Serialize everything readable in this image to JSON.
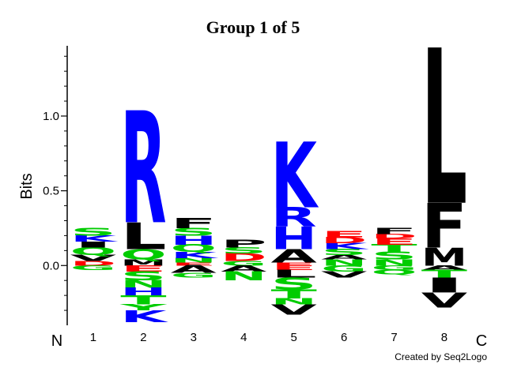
{
  "chart_data": {
    "type": "logo",
    "title": "Group 1 of 5",
    "y_label": "Bits",
    "n_label": "N",
    "c_label": "C",
    "footer": "Created by Seq2Logo",
    "ylim": [
      -0.4,
      1.47
    ],
    "yticks": [
      {
        "value": 0,
        "label": "0.0"
      },
      0.5,
      {
        "value": 1,
        "label": "1.0"
      }
    ],
    "minor_yticks": [
      -0.3,
      -0.2,
      -0.1,
      0.1,
      0.2,
      0.3,
      0.4,
      0.6,
      0.7,
      0.8,
      0.9,
      1.1,
      1.2,
      1.3,
      1.4
    ],
    "xlim": [
      0.48,
      9.23
    ],
    "x": [
      1,
      2,
      3,
      4,
      5,
      6,
      7,
      8
    ],
    "colors": {
      "K": "#0000ff",
      "R": "#0000ff",
      "H": "#0000ff",
      "D": "#ff0000",
      "E": "#ff0000",
      "S": "#00cc00",
      "T": "#00cc00",
      "N": "#00cc00",
      "Q": "#00cc00",
      "G": "#00cc00",
      "Y": "#00cc00",
      "A": "#000000",
      "V": "#000000",
      "L": "#000000",
      "I": "#000000",
      "M": "#000000",
      "F": "#000000",
      "P": "#000000",
      "W": "#000000"
    },
    "positions": [
      {
        "letters": [
          {
            "letter": "D",
            "height": 0.03
          },
          {
            "letter": "V",
            "height": 0.04
          },
          {
            "letter": "Q",
            "height": 0.05
          },
          {
            "letter": "I",
            "height": 0.04
          },
          {
            "letter": "K",
            "height": 0.04
          },
          {
            "letter": "S",
            "height": 0.05
          },
          {
            "letter": "G",
            "height": -0.03
          }
        ]
      },
      {
        "letters": [
          {
            "letter": "M",
            "height": 0.04
          },
          {
            "letter": "Q",
            "height": 0.07
          },
          {
            "letter": "L",
            "height": 0.18
          },
          {
            "letter": "R",
            "height": 0.75
          },
          {
            "letter": "E",
            "height": -0.04
          },
          {
            "letter": "S",
            "height": -0.06
          },
          {
            "letter": "N",
            "height": -0.05
          },
          {
            "letter": "H",
            "height": -0.05
          },
          {
            "letter": "T",
            "height": -0.06
          },
          {
            "letter": "Y",
            "height": -0.04
          },
          {
            "letter": "K",
            "height": -0.08
          }
        ]
      },
      {
        "letters": [
          {
            "letter": "E",
            "height": 0.02
          },
          {
            "letter": "N",
            "height": 0.03
          },
          {
            "letter": "K",
            "height": 0.04
          },
          {
            "letter": "Q",
            "height": 0.05
          },
          {
            "letter": "H",
            "height": 0.06
          },
          {
            "letter": "S",
            "height": 0.05
          },
          {
            "letter": "F",
            "height": 0.07
          },
          {
            "letter": "A",
            "height": -0.05
          },
          {
            "letter": "G",
            "height": -0.03
          }
        ]
      },
      {
        "letters": [
          {
            "letter": "G",
            "height": 0.03
          },
          {
            "letter": "D",
            "height": 0.05
          },
          {
            "letter": "S",
            "height": 0.04
          },
          {
            "letter": "P",
            "height": 0.05
          },
          {
            "letter": "A",
            "height": -0.04
          },
          {
            "letter": "N",
            "height": -0.06
          }
        ]
      },
      {
        "letters": [
          {
            "letter": "E",
            "height": 0.02
          },
          {
            "letter": "A",
            "height": 0.09
          },
          {
            "letter": "H",
            "height": 0.15
          },
          {
            "letter": "R",
            "height": 0.13
          },
          {
            "letter": "K",
            "height": 0.44
          },
          {
            "letter": "E",
            "height": -0.03
          },
          {
            "letter": "L",
            "height": -0.05
          },
          {
            "letter": "S",
            "height": -0.08
          },
          {
            "letter": "T",
            "height": -0.06
          },
          {
            "letter": "N",
            "height": -0.04
          },
          {
            "letter": "V",
            "height": -0.07
          }
        ]
      },
      {
        "letters": [
          {
            "letter": "N",
            "height": 0.04
          },
          {
            "letter": "A",
            "height": 0.03
          },
          {
            "letter": "S",
            "height": 0.04
          },
          {
            "letter": "K",
            "height": 0.04
          },
          {
            "letter": "D",
            "height": 0.04
          },
          {
            "letter": "E",
            "height": 0.04
          },
          {
            "letter": "G",
            "height": -0.04
          },
          {
            "letter": "V",
            "height": -0.04
          }
        ]
      },
      {
        "letters": [
          {
            "letter": "N",
            "height": 0.04
          },
          {
            "letter": "S",
            "height": 0.05
          },
          {
            "letter": "T",
            "height": 0.05
          },
          {
            "letter": "E",
            "height": 0.04
          },
          {
            "letter": "D",
            "height": 0.03
          },
          {
            "letter": "F",
            "height": 0.04
          },
          {
            "letter": "G",
            "height": -0.03
          },
          {
            "letter": "Q",
            "height": -0.03
          }
        ]
      },
      {
        "letters": [
          {
            "letter": "M",
            "height": 0.12
          },
          {
            "letter": "F",
            "height": 0.3
          },
          {
            "letter": "L",
            "height": 1.04
          },
          {
            "letter": "A",
            "height": -0.03
          },
          {
            "letter": "T",
            "height": -0.05
          },
          {
            "letter": "I",
            "height": -0.1
          },
          {
            "letter": "V",
            "height": -0.1
          }
        ]
      }
    ]
  }
}
